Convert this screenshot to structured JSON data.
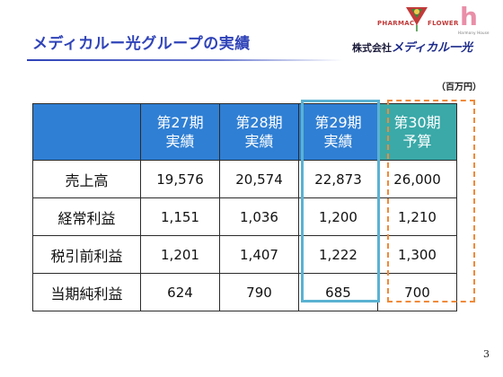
{
  "header": {
    "title": "メディカルー光グループの実績",
    "logo_pharmacy_text": "PHARMACY",
    "logo_flower_text": "FLOWER",
    "logo_harmony_text": "Harmony House",
    "logo_h_letter": "h",
    "company_prefix": "株式会社",
    "company_brand": "メディカル一光"
  },
  "unit_label": "（百万円）",
  "table": {
    "columns": [
      {
        "line1": "第27期",
        "line2": "実績"
      },
      {
        "line1": "第28期",
        "line2": "実績"
      },
      {
        "line1": "第29期",
        "line2": "実績"
      },
      {
        "line1": "第30期",
        "line2": "予算"
      }
    ],
    "rows": [
      {
        "label": "売上高",
        "values": [
          "19,576",
          "20,574",
          "22,873",
          "26,000"
        ]
      },
      {
        "label": "経常利益",
        "values": [
          "1,151",
          "1,036",
          "1,200",
          "1,210"
        ]
      },
      {
        "label": "税引前利益",
        "values": [
          "1,201",
          "1,407",
          "1,222",
          "1,300"
        ]
      },
      {
        "label": "当期純利益",
        "values": [
          "624",
          "790",
          "685",
          "700"
        ]
      }
    ]
  },
  "colors": {
    "title": "#2f43b8",
    "header_bg": "#2f7fd4",
    "budget_header_bg": "#3aa9a8",
    "highlight_29": "#5ab2d2",
    "highlight_30": "#f08a3a"
  },
  "page_number": "3"
}
